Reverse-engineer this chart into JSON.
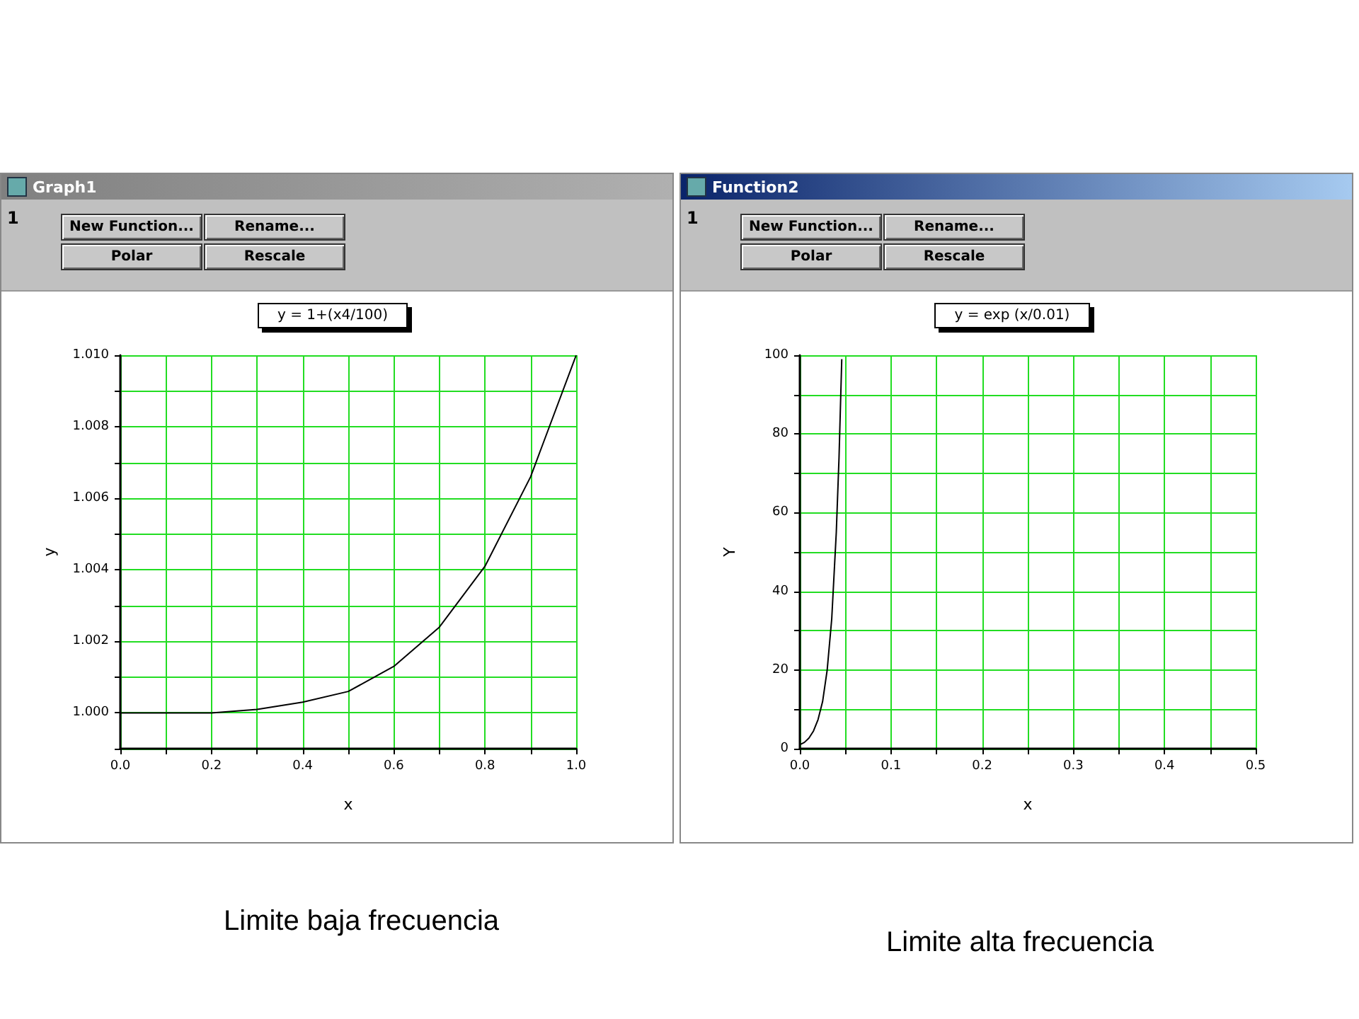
{
  "chart_data": [
    {
      "type": "line",
      "title": "y = 1+(x4/100)",
      "xlabel": "x",
      "ylabel": "y",
      "x": [
        0,
        0.1,
        0.2,
        0.3,
        0.4,
        0.5,
        0.6,
        0.7,
        0.8,
        0.9,
        1.0
      ],
      "series": [
        {
          "color": "#000000",
          "values": [
            1.0,
            1.0,
            1.0,
            1.0001,
            1.0003,
            1.0006,
            1.0013,
            1.0024,
            1.0041,
            1.0066,
            1.01
          ]
        }
      ],
      "xlim": [
        0,
        1
      ],
      "ylim": [
        0.999,
        1.01
      ],
      "xticks": [
        {
          "value": 0,
          "label": "0.0"
        },
        {
          "value": 0.1,
          "label": null
        },
        0.2,
        {
          "value": 0.3,
          "label": null
        },
        0.4,
        {
          "value": 0.5,
          "label": null
        },
        0.6,
        {
          "value": 0.7,
          "label": null
        },
        0.8,
        {
          "value": 0.9,
          "label": null
        },
        {
          "value": 1,
          "label": "1.0"
        }
      ],
      "yticks": [
        {
          "value": 0.999,
          "label": null
        },
        {
          "value": 1,
          "label": "1.000"
        },
        {
          "value": 1.001,
          "label": null
        },
        1.002,
        {
          "value": 1.003,
          "label": null
        },
        1.004,
        {
          "value": 1.005,
          "label": null
        },
        1.006,
        {
          "value": 1.007,
          "label": null
        },
        1.008,
        {
          "value": 1.009,
          "label": null
        },
        {
          "value": 1.01,
          "label": "1.010"
        }
      ],
      "grid": true,
      "line_style": "solid",
      "annotations": [
        "Graph1",
        "1",
        "New Function...",
        "Rename...",
        "Polar",
        "Rescale",
        "Limite baja frecuencia"
      ]
    },
    {
      "type": "line",
      "title": "y = exp (x/0.01)",
      "xlabel": "x",
      "ylabel": "Y",
      "x": [
        0,
        0.005,
        0.01,
        0.015,
        0.02,
        0.025,
        0.03,
        0.035,
        0.04,
        0.043,
        0.046
      ],
      "series": [
        {
          "color": "#000000",
          "values": [
            1,
            1.6,
            2.7,
            4.5,
            7.4,
            12,
            20,
            33,
            55,
            74,
            99
          ]
        }
      ],
      "xlim": [
        0,
        0.5
      ],
      "ylim": [
        0,
        100
      ],
      "xticks": [
        {
          "value": 0,
          "label": "0.0"
        },
        {
          "value": 0.05,
          "label": null
        },
        0.1,
        {
          "value": 0.15,
          "label": null
        },
        0.2,
        {
          "value": 0.25,
          "label": null
        },
        0.3,
        {
          "value": 0.35,
          "label": null
        },
        0.4,
        {
          "value": 0.45,
          "label": null
        },
        0.5
      ],
      "yticks": [
        0,
        {
          "value": 10,
          "label": null
        },
        20,
        {
          "value": 30,
          "label": null
        },
        40,
        {
          "value": 50,
          "label": null
        },
        60,
        {
          "value": 70,
          "label": null
        },
        80,
        {
          "value": 90,
          "label": null
        },
        100
      ],
      "grid": true,
      "line_style": "solid",
      "annotations": [
        "Function2",
        "1",
        "New Function...",
        "Rename...",
        "Polar",
        "Rescale",
        "Limite alta frecuencia"
      ]
    }
  ]
}
